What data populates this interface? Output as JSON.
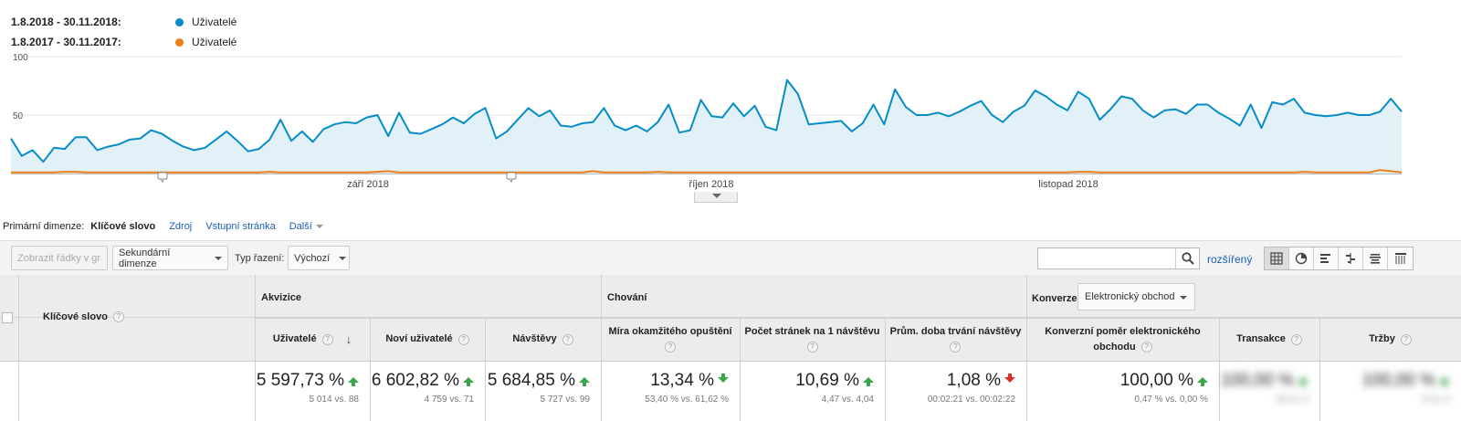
{
  "legend": {
    "series": [
      {
        "range": "1.8.2018 - 30.11.2018:",
        "name": "Uživatelé",
        "color": "#058dc7"
      },
      {
        "range": "1.8.2017 - 30.11.2017:",
        "name": "Uživatelé",
        "color": "#ed7e17"
      }
    ]
  },
  "chart_data": {
    "type": "line",
    "y_ticks": [
      "100",
      "50"
    ],
    "x_ticks": [
      "září 2018",
      "říjen 2018",
      "listopad 2018"
    ],
    "ylim": [
      0,
      100
    ],
    "series": [
      {
        "name": "Uživatelé",
        "period": "1.8.2018 - 30.11.2018",
        "color": "#058dc7",
        "values": [
          30,
          15,
          20,
          10,
          22,
          21,
          31,
          31,
          20,
          23,
          25,
          29,
          30,
          37,
          34,
          28,
          23,
          20,
          22,
          29,
          36,
          28,
          19,
          21,
          29,
          46,
          28,
          36,
          27,
          38,
          42,
          44,
          43,
          48,
          50,
          32,
          52,
          35,
          34,
          38,
          42,
          48,
          43,
          51,
          56,
          30,
          36,
          46,
          56,
          49,
          54,
          41,
          40,
          43,
          44,
          56,
          41,
          37,
          41,
          36,
          44,
          59,
          35,
          37,
          63,
          49,
          48,
          60,
          49,
          58,
          40,
          37,
          80,
          68,
          42,
          43,
          44,
          45,
          36,
          43,
          59,
          42,
          72,
          57,
          50,
          50,
          52,
          49,
          53,
          58,
          62,
          50,
          44,
          53,
          58,
          71,
          66,
          59,
          54,
          70,
          64,
          46,
          55,
          66,
          64,
          54,
          48,
          54,
          55,
          51,
          59,
          59,
          52,
          47,
          41,
          59,
          39,
          61,
          59,
          64,
          52,
          50,
          49,
          50,
          52,
          50,
          50,
          53,
          64,
          53
        ],
        "area_fill": "#e2f1f8"
      },
      {
        "name": "Uživatelé",
        "period": "1.8.2017 - 30.11.2017",
        "color": "#ed7e17",
        "values": [
          1,
          1,
          1,
          1,
          1,
          1.5,
          1.5,
          1,
          1,
          1,
          1,
          1,
          1,
          1,
          1,
          1,
          1,
          1,
          1,
          1,
          1,
          1,
          1,
          1,
          1.5,
          1,
          1,
          1,
          1,
          1,
          1,
          1,
          1,
          1,
          1.5,
          2,
          1,
          1,
          1,
          1,
          1,
          1,
          1,
          1,
          1,
          1,
          1,
          1,
          1,
          1,
          1,
          1,
          1,
          1,
          2,
          1,
          1,
          1,
          1,
          1,
          1.5,
          1,
          1,
          1,
          1,
          1,
          1,
          1,
          1,
          1,
          1,
          1,
          1,
          1,
          1,
          1,
          1,
          1,
          1,
          1,
          1,
          1,
          1,
          1,
          1,
          1,
          1,
          1,
          1,
          1,
          1,
          1,
          1,
          1,
          1,
          1,
          1,
          1,
          1,
          1.5,
          1.5,
          1,
          1,
          1,
          1,
          1,
          1,
          1,
          1,
          1,
          1,
          1,
          1,
          1,
          1,
          1,
          1,
          1,
          1,
          1,
          1.5,
          1,
          1,
          1,
          1,
          1,
          1,
          3,
          2,
          1
        ]
      }
    ],
    "annotation_markers": 2
  },
  "primary_dimension": {
    "label": "Primární dimenze:",
    "active": "Klíčové slovo",
    "links": [
      "Zdroj",
      "Vstupní stránka"
    ],
    "more": "Další"
  },
  "toolbar": {
    "plot_rows": "Zobrazit řádky v grafu",
    "secondary_dimension": "Sekundární dimenze",
    "sort_type_label": "Typ řazení:",
    "sort_type_value": "Výchozí",
    "search_placeholder": "",
    "advanced": "rozšířený"
  },
  "table": {
    "keyword_header": "Klíčové slovo",
    "groups": {
      "acquisition": "Akvizice",
      "behavior": "Chování",
      "conversions": "Konverze",
      "conversion_select": "Elektronický obchod"
    },
    "columns": [
      {
        "key": "users",
        "label": "Uživatelé",
        "pct": "5 597,73 %",
        "trend": "up",
        "sub": "5 014 vs. 88"
      },
      {
        "key": "new_users",
        "label": "Noví uživatelé",
        "pct": "6 602,82 %",
        "trend": "up",
        "sub": "4 759 vs. 71"
      },
      {
        "key": "sessions",
        "label": "Návštěvy",
        "pct": "5 684,85 %",
        "trend": "up",
        "sub": "5 727 vs. 99"
      },
      {
        "key": "bounce",
        "label": "Míra okamžitého opuštění",
        "pct": "13,34 %",
        "trend": "down",
        "sub": "53,40 % vs. 61,62 %"
      },
      {
        "key": "pages",
        "label": "Počet stránek na 1 návštěvu",
        "pct": "10,69 %",
        "trend": "up",
        "sub": "4,47 vs. 4,04"
      },
      {
        "key": "duration",
        "label": "Prům. doba trvání návštěvy",
        "pct": "1,08 %",
        "trend": "down-red",
        "sub": "00:02:21 vs. 00:02:22"
      },
      {
        "key": "conv_rate",
        "label": "Konverzní poměr elektronického obchodu",
        "pct": "100,00 %",
        "trend": "up",
        "sub": "0,47 % vs. 0,00 %"
      },
      {
        "key": "transactions",
        "label": "Transakce",
        "pct": "100,00 %",
        "trend": "up",
        "sub": "24 vs. 0"
      },
      {
        "key": "revenue",
        "label": "Tržby",
        "pct": "100,00 %",
        "trend": "up",
        "sub": "0 vs. 0"
      }
    ]
  }
}
